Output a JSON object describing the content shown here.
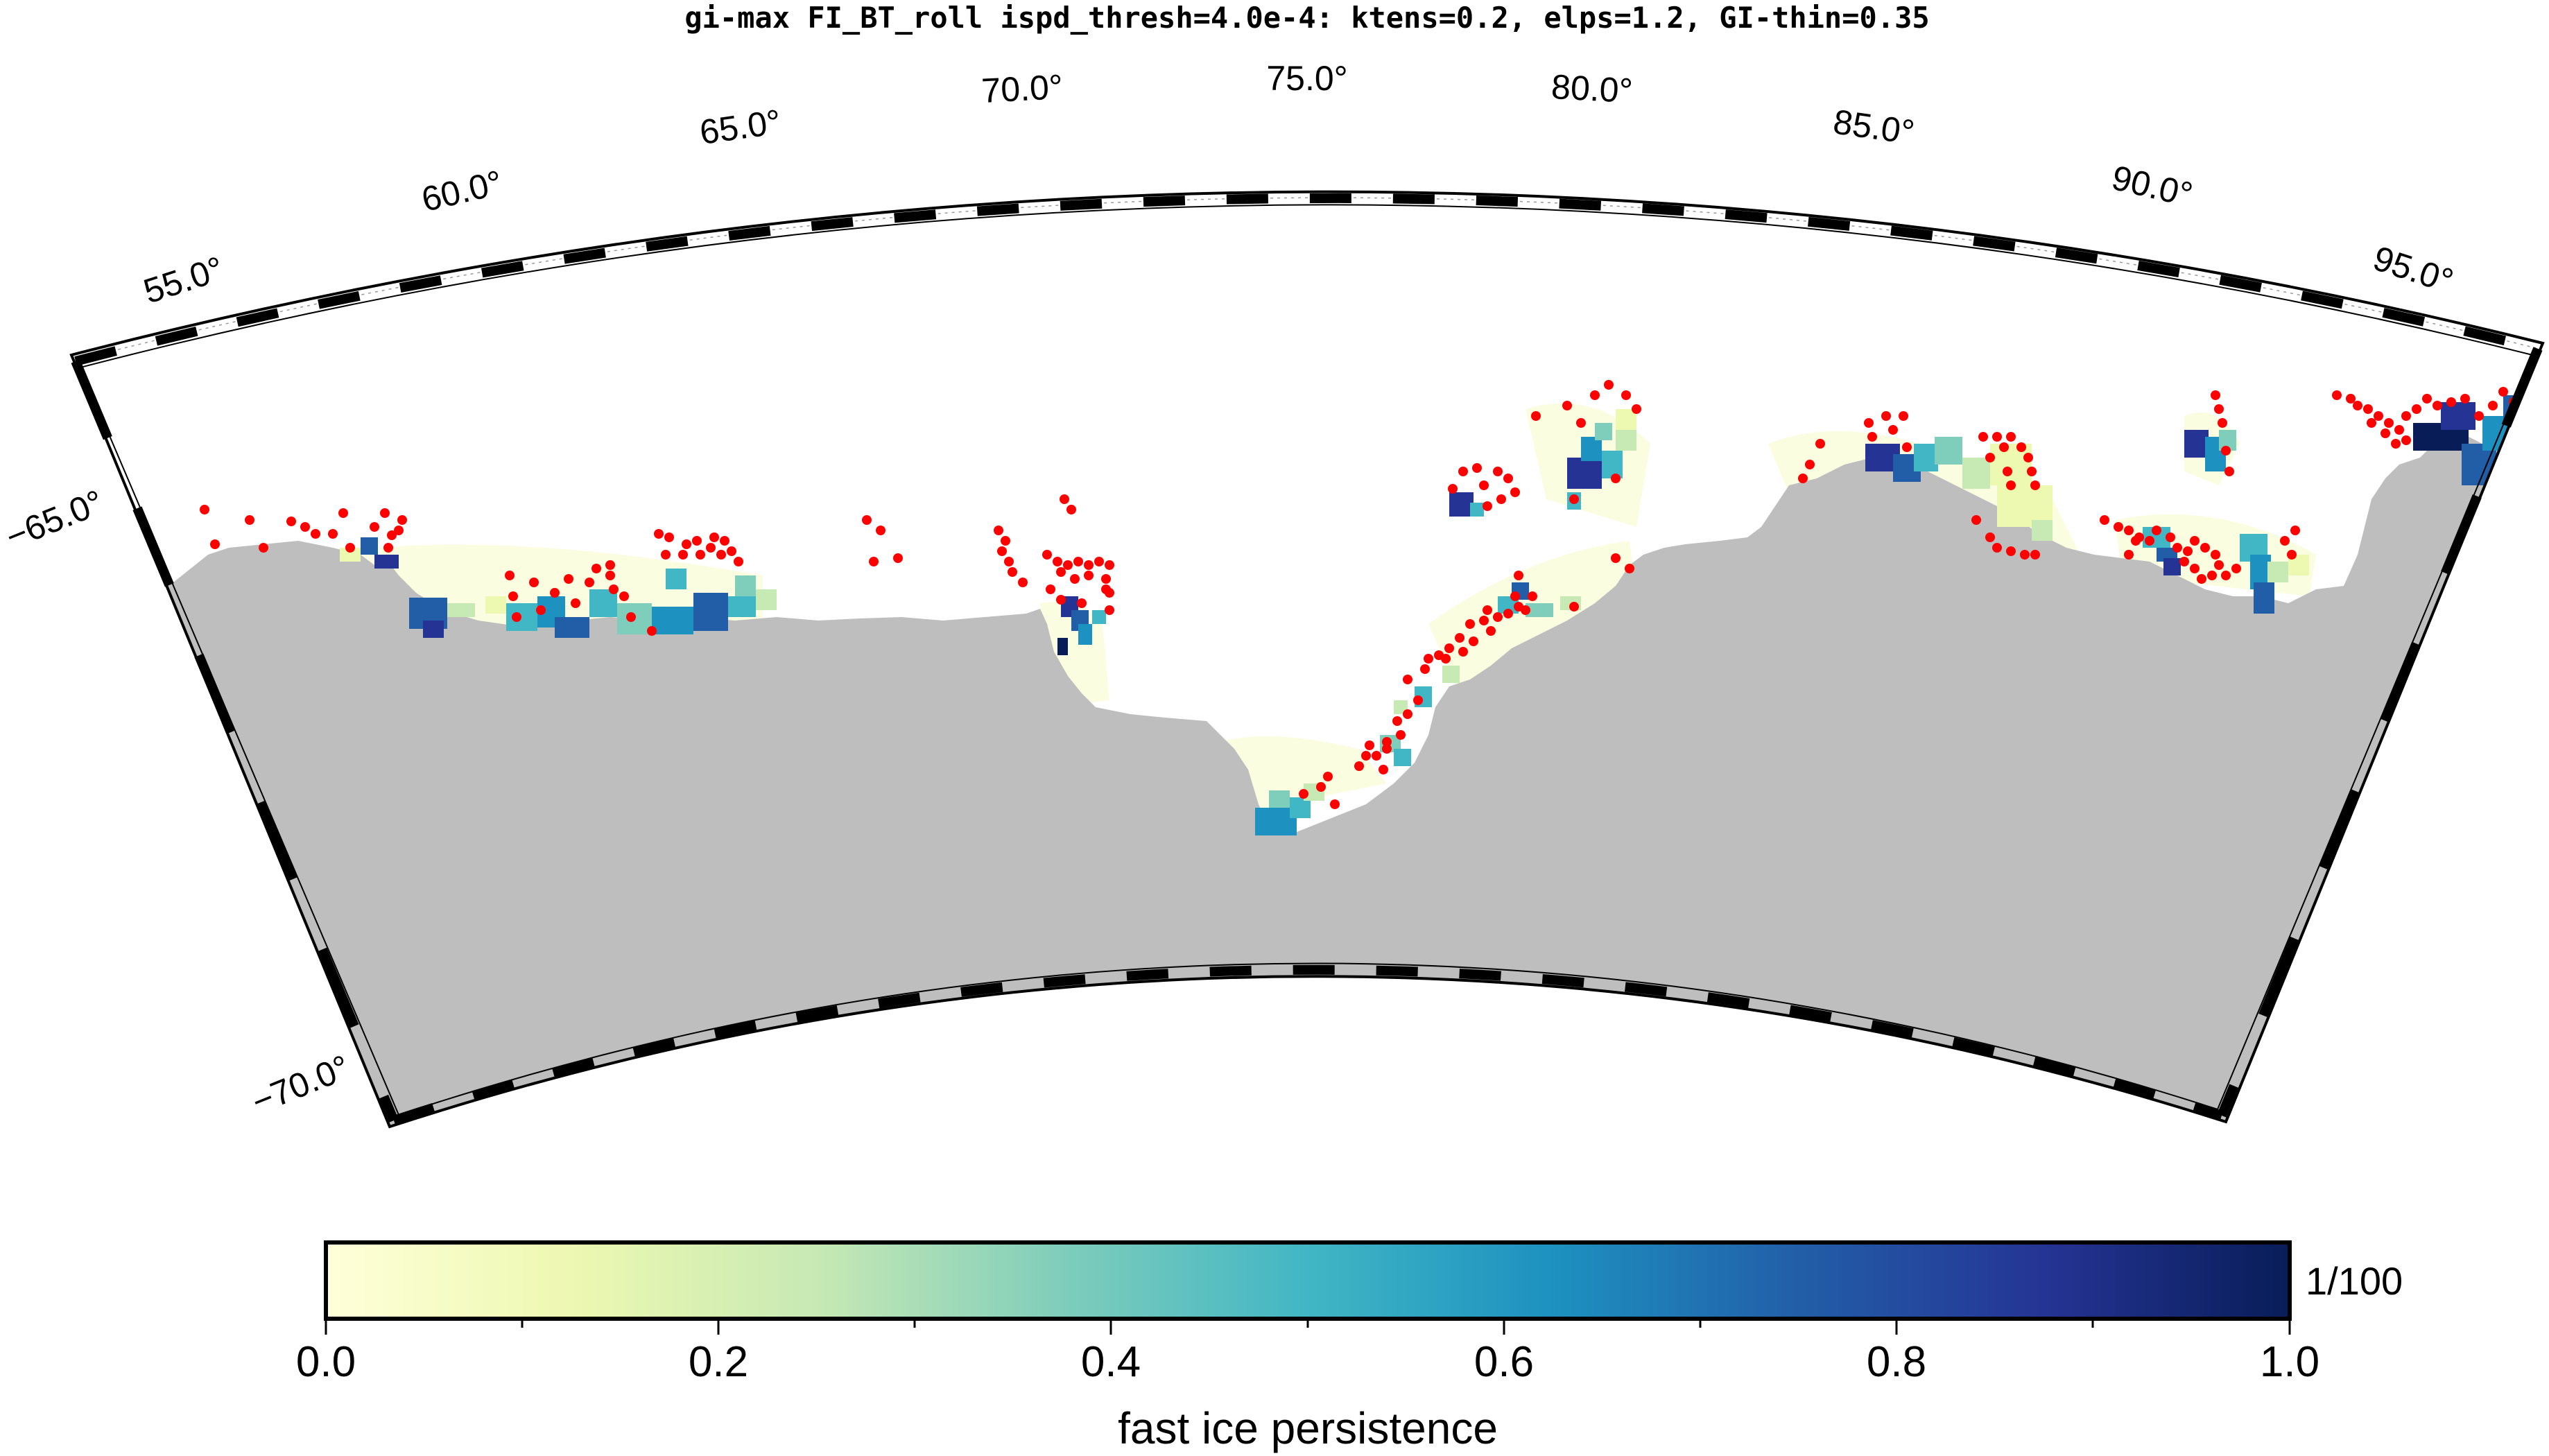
{
  "title": "gi-max FI_BT_roll ispd_thresh=4.0e-4: ktens=0.2, elps=1.2, GI-thin=0.35",
  "lon_labels": [
    "55.0°",
    "60.0°",
    "65.0°",
    "70.0°",
    "75.0°",
    "80.0°",
    "85.0°",
    "90.0°",
    "95.0°"
  ],
  "lat_labels": [
    "−65.0°",
    "−70.0°"
  ],
  "colorbar": {
    "tick_labels": [
      "0.0",
      "0.2",
      "0.4",
      "0.6",
      "0.8",
      "1.0"
    ],
    "scale_label": "1/100",
    "label": "fast ice persistence",
    "stops": [
      "#ffffd9",
      "#edf8b1",
      "#c7e9b4",
      "#7fcdbb",
      "#41b6c4",
      "#1d91c0",
      "#225ea8",
      "#253494",
      "#081d58"
    ]
  },
  "colors": {
    "land": "#bebebe",
    "grounded_icebergs": "#ff0000",
    "frame": "#000000"
  }
}
